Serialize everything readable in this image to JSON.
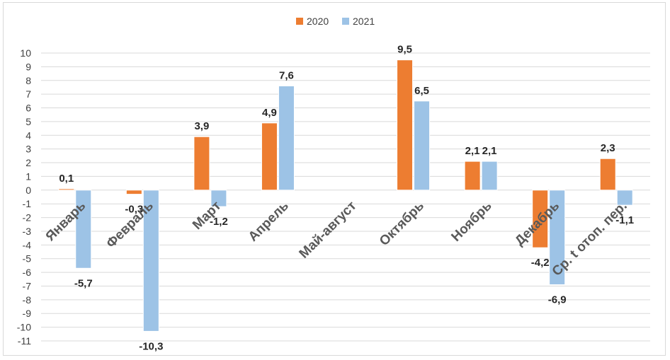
{
  "chart_data": {
    "type": "bar",
    "categories": [
      "Январь",
      "Февраль",
      "Март",
      "Апрель",
      "Май-август",
      "Октябрь",
      "Ноябрь",
      "Декабрь",
      "Ср. t отоп. пер."
    ],
    "series": [
      {
        "name": "2020",
        "color": "#ED7D31",
        "values": [
          0.1,
          -0.3,
          3.9,
          4.9,
          null,
          9.5,
          2.1,
          -4.2,
          2.3
        ]
      },
      {
        "name": "2021",
        "color": "#9DC3E6",
        "values": [
          -5.7,
          -10.3,
          -1.2,
          7.6,
          null,
          6.5,
          2.1,
          -6.9,
          -1.1
        ]
      }
    ],
    "ylim": [
      -11,
      10
    ],
    "yticks": [
      10,
      9,
      8,
      7,
      6,
      5,
      4,
      3,
      2,
      1,
      0,
      -1,
      -2,
      -3,
      -4,
      -5,
      -6,
      -7,
      -8,
      -9,
      -10,
      -11
    ],
    "grid": true,
    "legend_position": "top-center",
    "title": "",
    "xlabel": "",
    "ylabel": ""
  }
}
